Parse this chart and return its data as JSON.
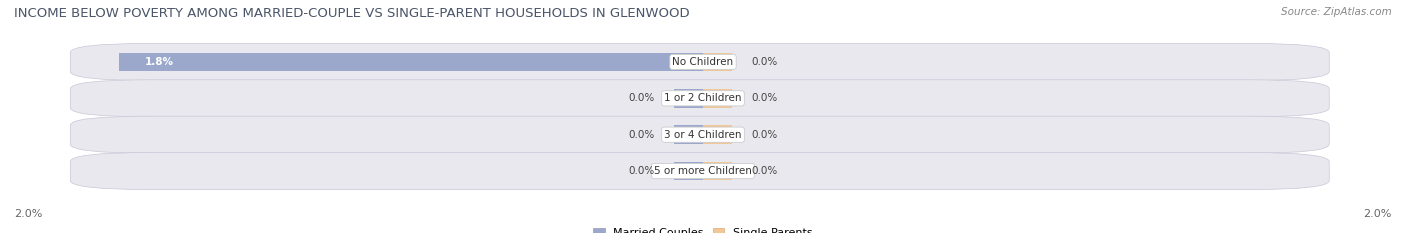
{
  "title": "INCOME BELOW POVERTY AMONG MARRIED-COUPLE VS SINGLE-PARENT HOUSEHOLDS IN GLENWOOD",
  "source": "Source: ZipAtlas.com",
  "categories": [
    "No Children",
    "1 or 2 Children",
    "3 or 4 Children",
    "5 or more Children"
  ],
  "married_values": [
    1.8,
    0.0,
    0.0,
    0.0
  ],
  "single_values": [
    0.0,
    0.0,
    0.0,
    0.0
  ],
  "married_color": "#9BA8CC",
  "single_color": "#F0C898",
  "married_label": "Married Couples",
  "single_label": "Single Parents",
  "xlim": [
    -2.0,
    2.0
  ],
  "bar_height": 0.6,
  "fig_bg": "#ffffff",
  "row_bg": "#e8e8ee",
  "row_border": "#c8c8d8",
  "title_color": "#4a5568",
  "source_color": "#888888",
  "label_color": "#444444",
  "bottom_tick_color": "#666666",
  "title_fontsize": 9.5,
  "source_fontsize": 7.5,
  "label_fontsize": 7.5,
  "category_fontsize": 7.5,
  "tick_fontsize": 8,
  "legend_fontsize": 8,
  "stub_size": 0.09
}
